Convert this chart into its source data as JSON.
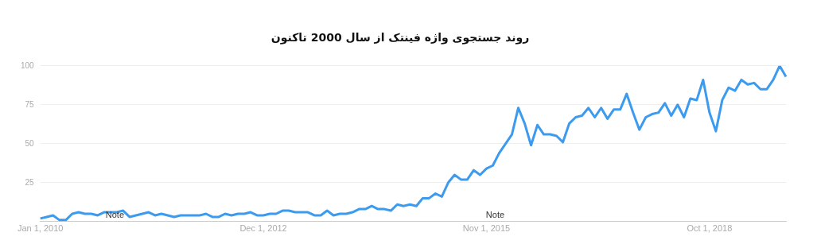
{
  "chart_data": {
    "type": "line",
    "title": "روند جستجوی واژه فینتک از سال 2000 تاکنون",
    "categories": [
      "Jan 1, 2010",
      null,
      null,
      null,
      null,
      null,
      null,
      null,
      null,
      null,
      null,
      null,
      null,
      null,
      null,
      null,
      null,
      null,
      null,
      null,
      null,
      null,
      null,
      null,
      null,
      null,
      null,
      null,
      null,
      null,
      null,
      null,
      null,
      null,
      null,
      "Dec 1, 2012",
      null,
      null,
      null,
      null,
      null,
      null,
      null,
      null,
      null,
      null,
      null,
      null,
      null,
      null,
      null,
      null,
      null,
      null,
      null,
      null,
      null,
      null,
      null,
      null,
      null,
      null,
      null,
      null,
      null,
      null,
      null,
      null,
      null,
      null,
      "Nov 1, 2015",
      null,
      null,
      null,
      null,
      null,
      null,
      null,
      null,
      null,
      null,
      null,
      null,
      null,
      null,
      null,
      null,
      null,
      null,
      null,
      null,
      null,
      null,
      null,
      null,
      null,
      null,
      null,
      null,
      null,
      null,
      null,
      null,
      null,
      null,
      "Oct 1, 2018",
      null,
      null,
      null,
      null,
      null,
      null,
      null,
      null,
      null,
      null,
      null,
      null
    ],
    "series": [
      {
        "color": "#3d9bef",
        "values": [
          2,
          3,
          4,
          1,
          1,
          5,
          6,
          5,
          5,
          4,
          6,
          6,
          6,
          7,
          3,
          4,
          5,
          6,
          4,
          5,
          4,
          3,
          4,
          4,
          4,
          4,
          5,
          3,
          3,
          5,
          4,
          5,
          5,
          6,
          4,
          4,
          5,
          5,
          7,
          7,
          6,
          6,
          6,
          4,
          4,
          7,
          4,
          5,
          5,
          6,
          8,
          8,
          10,
          8,
          8,
          7,
          11,
          10,
          11,
          10,
          15,
          15,
          18,
          16,
          25,
          30,
          27,
          27,
          33,
          30,
          34,
          36,
          44,
          50,
          56,
          73,
          63,
          49,
          62,
          56,
          56,
          55,
          51,
          63,
          67,
          68,
          73,
          67,
          73,
          66,
          72,
          72,
          82,
          70,
          59,
          67,
          69,
          70,
          76,
          68,
          75,
          67,
          79,
          78,
          91,
          70,
          58,
          78,
          86,
          84,
          91,
          88,
          89,
          85,
          85,
          91,
          100,
          93
        ]
      }
    ],
    "ylim": [
      0,
      100
    ],
    "yticks": [
      25,
      50,
      75,
      100
    ],
    "grid": "y",
    "legend": false,
    "marker": "none",
    "line_style": "solid",
    "annotations": [
      "Note",
      "Note"
    ]
  }
}
